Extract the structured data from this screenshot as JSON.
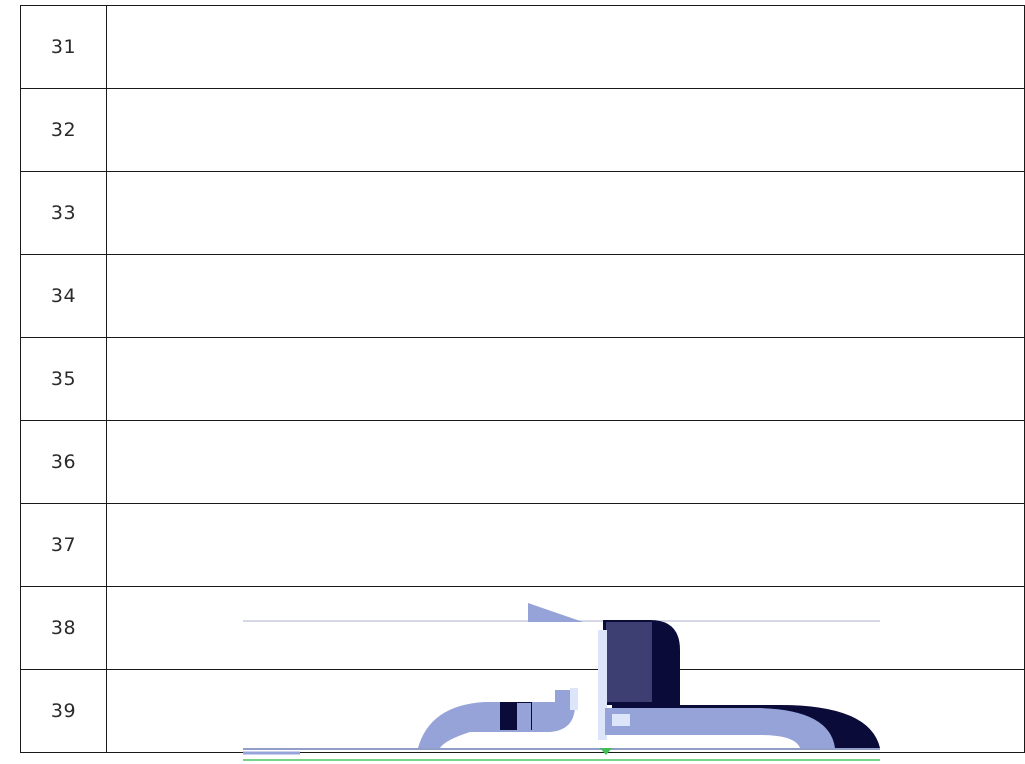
{
  "table": {
    "rows": [
      {
        "number": "31",
        "content": ""
      },
      {
        "number": "32",
        "content": ""
      },
      {
        "number": "33",
        "content": ""
      },
      {
        "number": "34",
        "content": ""
      },
      {
        "number": "35",
        "content": ""
      },
      {
        "number": "36",
        "content": ""
      },
      {
        "number": "37",
        "content": ""
      },
      {
        "number": "38",
        "content": ""
      },
      {
        "number": "39",
        "content": ""
      }
    ]
  },
  "graphic": {
    "colors": {
      "navy": "#0b0b3a",
      "periwinkle": "#96a3d8",
      "dark_slate": "#3d3f72",
      "pale_blue": "#dde5fa",
      "green": "#3fbf55"
    }
  }
}
